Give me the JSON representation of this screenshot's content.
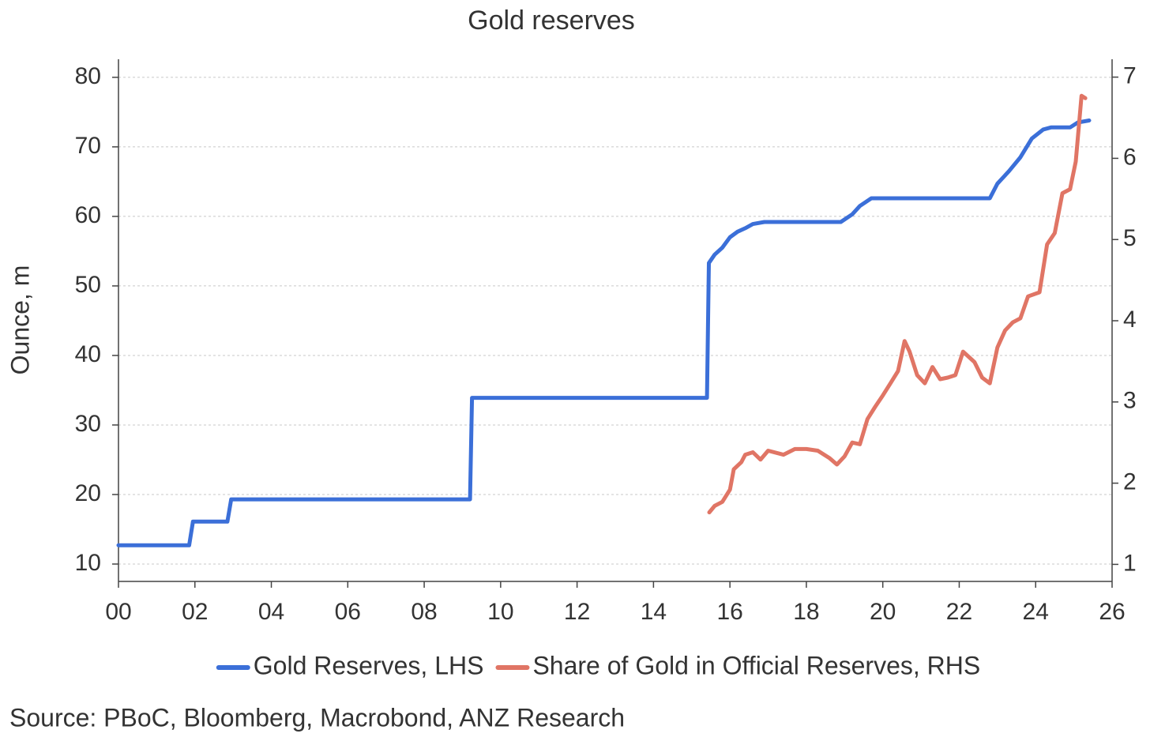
{
  "chart_data": {
    "type": "line",
    "title": "Gold reserves",
    "ylabel": "Ounce, m",
    "source": "Source: PBoC, Bloomberg, Macrobond, ANZ Research",
    "xlim": [
      0,
      26
    ],
    "xticks": [
      {
        "value": 0,
        "label": "00"
      },
      {
        "value": 2,
        "label": "02"
      },
      {
        "value": 4,
        "label": "04"
      },
      {
        "value": 6,
        "label": "06"
      },
      {
        "value": 8,
        "label": "08"
      },
      10,
      12,
      14,
      16,
      18,
      20,
      22,
      24,
      26
    ],
    "ylim": [
      7.5,
      82.6
    ],
    "yticks": [
      10,
      20,
      30,
      40,
      50,
      60,
      70,
      80
    ],
    "y2lim": [
      0.79,
      7.22
    ],
    "y2ticks": [
      1,
      2,
      3,
      4,
      5,
      6,
      7
    ],
    "grid": true,
    "legend": "bottom",
    "series": [
      {
        "name": "Gold Reserves, LHS",
        "color": "#3b6fd8",
        "axis": "y",
        "x": [
          0,
          1.85,
          1.95,
          2.85,
          2.95,
          9.2,
          9.25,
          15.4,
          15.45,
          15.6,
          15.8,
          16,
          16.2,
          16.4,
          16.6,
          16.9,
          18.9,
          19.2,
          19.4,
          19.7,
          22.8,
          23,
          23.3,
          23.6,
          23.9,
          24.2,
          24.4,
          24.9,
          25.1,
          25.4
        ],
        "values": [
          12.7,
          12.7,
          16.1,
          16.1,
          19.3,
          19.3,
          33.9,
          33.9,
          53.3,
          54.5,
          55.5,
          57,
          57.8,
          58.3,
          58.9,
          59.2,
          59.2,
          60.3,
          61.5,
          62.6,
          62.6,
          64.7,
          66.5,
          68.5,
          71.2,
          72.5,
          72.8,
          72.8,
          73.5,
          73.8
        ]
      },
      {
        "name": "Share of Gold in Official Reserves, RHS",
        "color": "#e07565",
        "axis": "y2",
        "x": [
          15.46,
          15.6,
          15.8,
          16.0,
          16.1,
          16.3,
          16.4,
          16.6,
          16.8,
          17.0,
          17.4,
          17.7,
          18.0,
          18.3,
          18.6,
          18.8,
          19.0,
          19.2,
          19.4,
          19.6,
          19.8,
          20.0,
          20.2,
          20.4,
          20.57,
          20.7,
          20.9,
          21.1,
          21.3,
          21.5,
          21.7,
          21.9,
          22.1,
          22.4,
          22.6,
          22.8,
          23.0,
          23.2,
          23.4,
          23.6,
          23.8,
          24.1,
          24.3,
          24.5,
          24.7,
          24.9,
          25.05,
          25.2,
          25.3
        ],
        "values": [
          1.64,
          1.72,
          1.77,
          1.92,
          2.17,
          2.26,
          2.35,
          2.38,
          2.29,
          2.4,
          2.35,
          2.42,
          2.42,
          2.4,
          2.31,
          2.23,
          2.33,
          2.5,
          2.48,
          2.79,
          2.94,
          3.08,
          3.23,
          3.38,
          3.75,
          3.62,
          3.33,
          3.23,
          3.43,
          3.28,
          3.3,
          3.33,
          3.62,
          3.49,
          3.3,
          3.23,
          3.67,
          3.88,
          3.98,
          4.03,
          4.3,
          4.35,
          4.94,
          5.08,
          5.57,
          5.62,
          5.96,
          6.77,
          6.74
        ]
      }
    ]
  }
}
